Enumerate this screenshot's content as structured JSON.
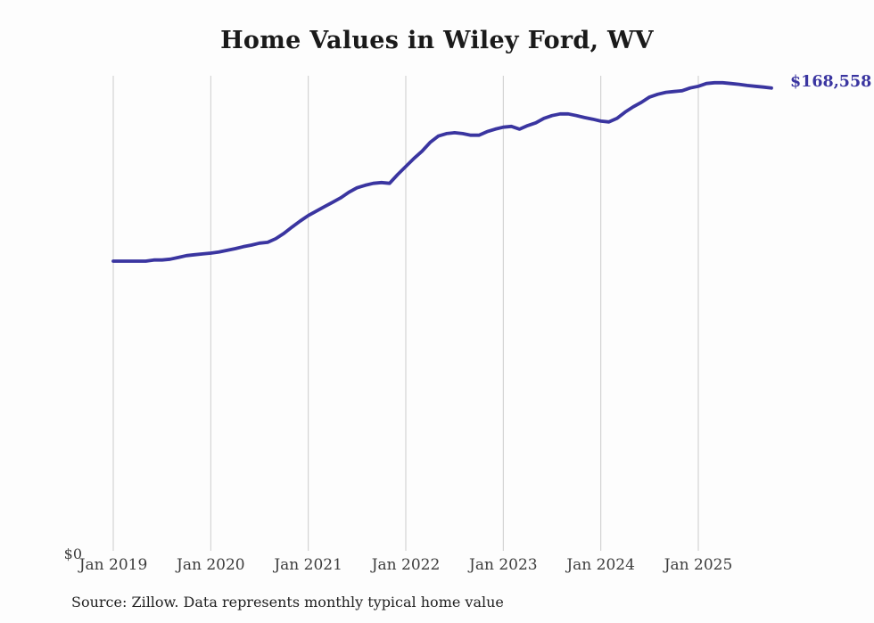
{
  "title": "Home Values in Wiley Ford, WV",
  "annotations": {
    "end_value_label": "$168,558"
  },
  "y_axis": {
    "zero_label": "$0"
  },
  "footer": {
    "source_note": "Source: Zillow. Data represents monthly typical home value"
  },
  "colors": {
    "line": "#3a35a0",
    "end_label": "#3a35a0",
    "gridline": "#cccccc",
    "title_text": "#1a1a1a",
    "axis_text": "#3d3d3d",
    "source_text": "#222222",
    "background": "#fdfdfd"
  },
  "chart_data": {
    "type": "line",
    "title": "Home Values in Wiley Ford, WV",
    "x_interval": "monthly",
    "x_start": "Jan 2019",
    "x_end": "Oct 2025",
    "x_tick_labels": [
      "Jan 2019",
      "Jan 2020",
      "Jan 2021",
      "Jan 2022",
      "Jan 2023",
      "Jan 2024",
      "Jan 2025"
    ],
    "ylim": [
      0,
      173000
    ],
    "grid": "vertical-only",
    "legend": "none",
    "series": [
      {
        "name": "Typical home value (USD)",
        "end_value": 168558,
        "values": [
          106000,
          106000,
          106000,
          106000,
          106000,
          106400,
          106400,
          106700,
          107300,
          108000,
          108300,
          108600,
          108900,
          109300,
          109900,
          110500,
          111200,
          111800,
          112500,
          112800,
          114100,
          116000,
          118300,
          120500,
          122500,
          124100,
          125700,
          127300,
          128900,
          130900,
          132500,
          133400,
          134100,
          134400,
          134100,
          137300,
          140200,
          143100,
          145700,
          148900,
          151200,
          152100,
          152400,
          152100,
          151500,
          151500,
          152800,
          153700,
          154400,
          154700,
          153700,
          155000,
          156000,
          157600,
          158600,
          159200,
          159200,
          158600,
          157900,
          157300,
          156600,
          156300,
          157600,
          159900,
          161800,
          163400,
          165300,
          166300,
          167000,
          167300,
          167600,
          168600,
          169200,
          170200,
          170500,
          170500,
          170200,
          169900,
          169500,
          169200,
          168900,
          168558
        ]
      }
    ]
  }
}
